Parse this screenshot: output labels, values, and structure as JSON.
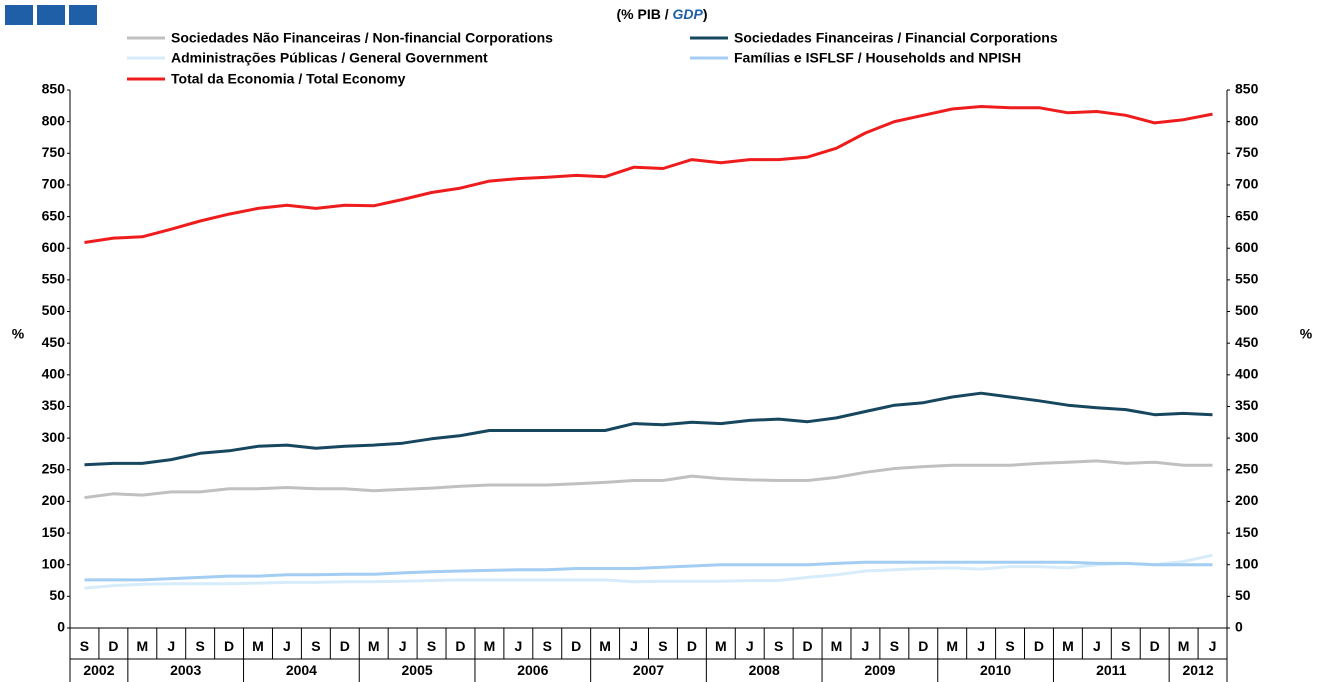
{
  "chart_data": {
    "type": "line",
    "title": {
      "prefix": "(% PIB /",
      "emphasis": "GDP",
      "suffix": ")"
    },
    "y_label": "%",
    "y2_label": "%",
    "categories": [
      "S",
      "D",
      "M",
      "J",
      "S",
      "D",
      "M",
      "J",
      "S",
      "D",
      "M",
      "J",
      "S",
      "D",
      "M",
      "J",
      "S",
      "D",
      "M",
      "J",
      "S",
      "D",
      "M",
      "J",
      "S",
      "D",
      "M",
      "J",
      "S",
      "D",
      "M",
      "J",
      "S",
      "D",
      "M",
      "J",
      "S",
      "D",
      "M",
      "J"
    ],
    "years": [
      "2002",
      "2003",
      "2004",
      "2005",
      "2006",
      "2007",
      "2008",
      "2009",
      "2010",
      "2011",
      "2012"
    ],
    "ylim": [
      0,
      850
    ],
    "yticks": [
      0,
      50,
      100,
      150,
      200,
      250,
      300,
      350,
      400,
      450,
      500,
      550,
      600,
      650,
      700,
      750,
      800,
      850
    ],
    "y2lim": [
      0,
      850
    ],
    "y2ticks": [
      0,
      50,
      100,
      150,
      200,
      250,
      300,
      350,
      400,
      450,
      500,
      550,
      600,
      650,
      700,
      750,
      800,
      850
    ],
    "series": [
      {
        "name": "Sociedades Não Financeiras / Non-financial Corporations",
        "color": "#c0c0c0",
        "values": [
          206,
          212,
          210,
          215,
          215,
          220,
          220,
          222,
          220,
          220,
          217,
          219,
          221,
          224,
          226,
          226,
          226,
          228,
          230,
          233,
          233,
          240,
          236,
          234,
          233,
          233,
          238,
          246,
          252,
          255,
          257,
          257,
          257,
          260,
          262,
          264,
          260,
          262,
          257,
          257
        ]
      },
      {
        "name": "Sociedades Financeiras / Financial Corporations",
        "color": "#17475f",
        "values": [
          258,
          260,
          260,
          266,
          276,
          280,
          287,
          289,
          284,
          287,
          289,
          292,
          299,
          304,
          312,
          312,
          312,
          312,
          312,
          323,
          321,
          325,
          323,
          328,
          330,
          326,
          332,
          342,
          352,
          356,
          365,
          371,
          365,
          359,
          352,
          348,
          345,
          337,
          339,
          337
        ]
      },
      {
        "name": "Administrações Públicas / General Government",
        "color": "#d6ecfa",
        "values": [
          63,
          67,
          69,
          70,
          70,
          70,
          71,
          72,
          72,
          73,
          73,
          74,
          75,
          76,
          76,
          76,
          76,
          76,
          76,
          73,
          74,
          74,
          74,
          75,
          75,
          80,
          84,
          90,
          92,
          94,
          95,
          93,
          97,
          97,
          95,
          100,
          102,
          100,
          105,
          115
        ]
      },
      {
        "name": "Famílias e ISFLSF / Households and NPISH",
        "color": "#a3cdf2",
        "values": [
          76,
          76,
          76,
          78,
          80,
          82,
          82,
          84,
          84,
          85,
          85,
          87,
          89,
          90,
          91,
          92,
          92,
          94,
          94,
          94,
          96,
          98,
          100,
          100,
          100,
          100,
          102,
          104,
          104,
          104,
          104,
          104,
          104,
          104,
          104,
          102,
          102,
          100,
          100,
          100
        ]
      },
      {
        "name": "Total da Economia / Total Economy",
        "color": "#ee1c1c",
        "values": [
          609,
          616,
          618,
          630,
          643,
          654,
          663,
          668,
          663,
          668,
          667,
          677,
          688,
          695,
          706,
          710,
          712,
          715,
          713,
          728,
          726,
          740,
          735,
          740,
          740,
          744,
          758,
          782,
          800,
          810,
          820,
          824,
          822,
          822,
          814,
          816,
          810,
          798,
          803,
          812
        ]
      }
    ]
  }
}
